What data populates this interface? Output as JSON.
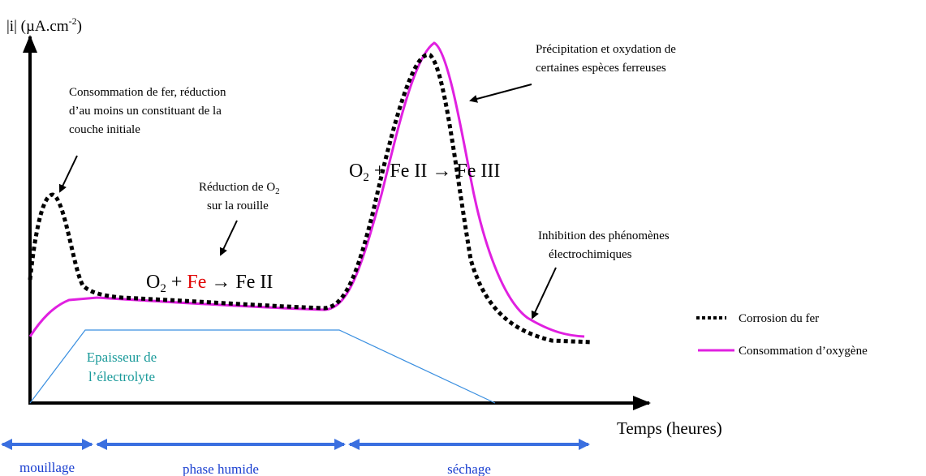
{
  "axes": {
    "y_label": {
      "main": "|i| (µA.cm",
      "sup": "-2",
      "end": ")"
    },
    "x_label": "Temps (heures)"
  },
  "annotations": {
    "fer": [
      "Consommation de fer, réduction",
      "d’au moins un constituant de la",
      "couche initiale"
    ],
    "reduction": {
      "line1": "Réduction de O",
      "sub": "2",
      "line2": "sur la rouille"
    },
    "precipitation": [
      "Précipitation et oxydation de",
      "certaines espèces ferreuses"
    ],
    "inhibition": [
      "Inhibition des phénomènes",
      "électrochimiques"
    ],
    "electrolyte": [
      "Epaisseur de",
      "l’électrolyte"
    ]
  },
  "equations": {
    "eq1": {
      "o": "O",
      "sub": "2",
      "plus": " + ",
      "fe": "Fe",
      "rest": " → Fe II"
    },
    "eq2": {
      "o": "O",
      "sub": "2",
      "rest": " + Fe II → Fe III"
    }
  },
  "legend": [
    "Corrosion du fer",
    "Consommation d’oxygène"
  ],
  "phases": [
    "mouillage",
    "phase humide",
    "séchage"
  ]
}
